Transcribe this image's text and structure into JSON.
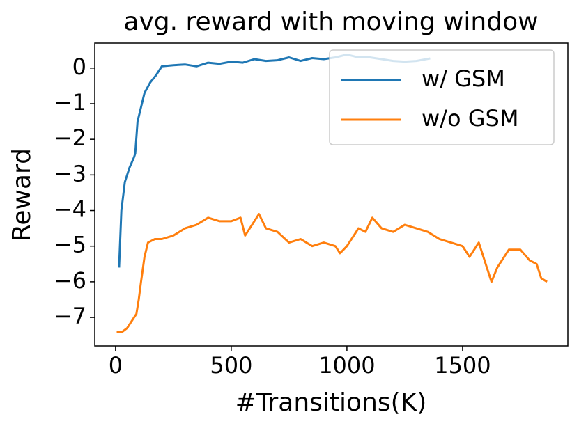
{
  "chart_data": {
    "type": "line",
    "title": "avg. reward with moving window",
    "xlabel": "#Transitions(K)",
    "ylabel": "Reward",
    "xlim": [
      -90,
      1955
    ],
    "xticks": [
      0,
      500,
      1000,
      1500
    ],
    "ylim": [
      -7.8,
      0.7
    ],
    "yticks": [
      0,
      {
        "value": -1,
        "label": "−1"
      },
      {
        "value": -2,
        "label": "−2"
      },
      {
        "value": -3,
        "label": "−3"
      },
      {
        "value": -4,
        "label": "−4"
      },
      {
        "value": -5,
        "label": "−5"
      },
      {
        "value": -6,
        "label": "−6"
      },
      {
        "value": -7,
        "label": "−7"
      }
    ],
    "legend": "upper right",
    "series": [
      {
        "name": "w/ GSM",
        "color": "#1f77b4",
        "x": [
          15,
          25,
          40,
          60,
          80,
          85,
          95,
          110,
          125,
          150,
          175,
          200,
          250,
          300,
          350,
          400,
          450,
          500,
          550,
          600,
          650,
          700,
          750,
          800,
          850,
          900,
          950,
          1000,
          1050,
          1100,
          1150,
          1200,
          1250,
          1300,
          1360
        ],
        "values": [
          -5.6,
          -4,
          -3.2,
          -2.8,
          -2.5,
          -2.4,
          -1.5,
          -1.1,
          -0.7,
          -0.4,
          -0.2,
          0.05,
          0.08,
          0.1,
          0.05,
          0.15,
          0.12,
          0.18,
          0.15,
          0.25,
          0.2,
          0.22,
          0.3,
          0.2,
          0.28,
          0.25,
          0.3,
          0.38,
          0.3,
          0.3,
          0.25,
          0.2,
          0.18,
          0.2,
          0.27
        ]
      },
      {
        "name": "w/o GSM",
        "color": "#ff7f0e",
        "x": [
          5,
          30,
          50,
          70,
          90,
          100,
          110,
          125,
          140,
          170,
          200,
          250,
          300,
          350,
          400,
          450,
          500,
          540,
          560,
          580,
          620,
          650,
          700,
          750,
          800,
          850,
          900,
          950,
          970,
          1000,
          1050,
          1080,
          1110,
          1150,
          1200,
          1250,
          1300,
          1350,
          1400,
          1450,
          1500,
          1530,
          1570,
          1600,
          1625,
          1650,
          1700,
          1750,
          1790,
          1820,
          1840,
          1865
        ],
        "values": [
          -7.4,
          -7.4,
          -7.3,
          -7.1,
          -6.9,
          -6.5,
          -6.0,
          -5.3,
          -4.9,
          -4.8,
          -4.8,
          -4.7,
          -4.5,
          -4.4,
          -4.2,
          -4.3,
          -4.3,
          -4.2,
          -4.7,
          -4.5,
          -4.1,
          -4.5,
          -4.6,
          -4.9,
          -4.8,
          -5.0,
          -4.9,
          -5.0,
          -5.2,
          -5.0,
          -4.5,
          -4.6,
          -4.2,
          -4.5,
          -4.6,
          -4.4,
          -4.5,
          -4.6,
          -4.8,
          -4.9,
          -5.0,
          -5.3,
          -4.9,
          -5.5,
          -6.0,
          -5.6,
          -5.1,
          -5.1,
          -5.4,
          -5.5,
          -5.9,
          -6.0
        ]
      }
    ]
  }
}
